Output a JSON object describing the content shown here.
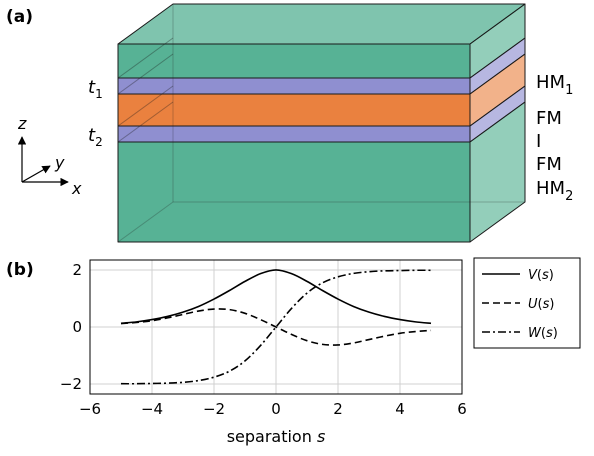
{
  "panel_a": {
    "label": "(a)",
    "thickness_labels": {
      "t1_base": "t",
      "t1_sub": "1",
      "t2_base": "t",
      "t2_sub": "2"
    },
    "layer_labels": {
      "hm1_base": "HM",
      "hm1_sub": "1",
      "fm_top": "FM",
      "insulator": "I",
      "fm_bottom": "FM",
      "hm2_base": "HM",
      "hm2_sub": "2"
    },
    "axes": {
      "z": "z",
      "y": "y",
      "x": "x"
    },
    "colors": {
      "hm": "#3aa582",
      "fm": "#7b7bc8",
      "insulator": "#e8732a"
    }
  },
  "panel_b": {
    "label": "(b)"
  },
  "chart_data": {
    "type": "line",
    "xlabel_base": "separation",
    "xlabel_var": "s",
    "xlim": [
      -6,
      6
    ],
    "ylim": [
      -2.35,
      2.35
    ],
    "xticks": [
      -6,
      -4,
      -2,
      0,
      2,
      4,
      6
    ],
    "yticks": [
      -2,
      0,
      2
    ],
    "xtick_labels": [
      "−6",
      "−4",
      "−2",
      "0",
      "2",
      "4",
      "6"
    ],
    "ytick_labels": [
      "−2",
      "0",
      "2"
    ],
    "grid": true,
    "legend_position": "right",
    "series": [
      {
        "name": "V",
        "legend_fn": "V",
        "legend_arg": "(s)",
        "dash": "solid",
        "x": [
          -5,
          -4.5,
          -4,
          -3.5,
          -3,
          -2.5,
          -2,
          -1.5,
          -1,
          -0.5,
          0,
          0.5,
          1,
          1.5,
          2,
          2.5,
          3,
          3.5,
          4,
          4.5,
          5
        ],
        "y": [
          0.13,
          0.18,
          0.26,
          0.37,
          0.52,
          0.72,
          0.98,
          1.28,
          1.6,
          1.87,
          2.0,
          1.87,
          1.6,
          1.28,
          0.98,
          0.72,
          0.52,
          0.37,
          0.26,
          0.18,
          0.13
        ]
      },
      {
        "name": "U",
        "legend_fn": "U",
        "legend_arg": "(s)",
        "dash": "dashed",
        "x": [
          -5,
          -4.5,
          -4,
          -3.5,
          -3,
          -2.5,
          -2,
          -1.5,
          -1,
          -0.5,
          0,
          0.5,
          1,
          1.5,
          2,
          2.5,
          3,
          3.5,
          4,
          4.5,
          5
        ],
        "y": [
          0.12,
          0.16,
          0.22,
          0.32,
          0.44,
          0.56,
          0.63,
          0.61,
          0.48,
          0.26,
          0.0,
          -0.26,
          -0.48,
          -0.61,
          -0.63,
          -0.56,
          -0.44,
          -0.32,
          -0.22,
          -0.16,
          -0.12
        ]
      },
      {
        "name": "W",
        "legend_fn": "W",
        "legend_arg": "(s)",
        "dash": "dashdot",
        "x": [
          -5,
          -4.5,
          -4,
          -3.5,
          -3,
          -2.5,
          -2,
          -1.5,
          -1,
          -0.5,
          0,
          0.5,
          1,
          1.5,
          2,
          2.5,
          3,
          3.5,
          4,
          4.5,
          5
        ],
        "y": [
          -1.99,
          -1.99,
          -1.98,
          -1.97,
          -1.94,
          -1.88,
          -1.76,
          -1.55,
          -1.19,
          -0.65,
          0.0,
          0.65,
          1.19,
          1.55,
          1.76,
          1.88,
          1.94,
          1.97,
          1.98,
          1.99,
          1.99
        ]
      }
    ]
  }
}
